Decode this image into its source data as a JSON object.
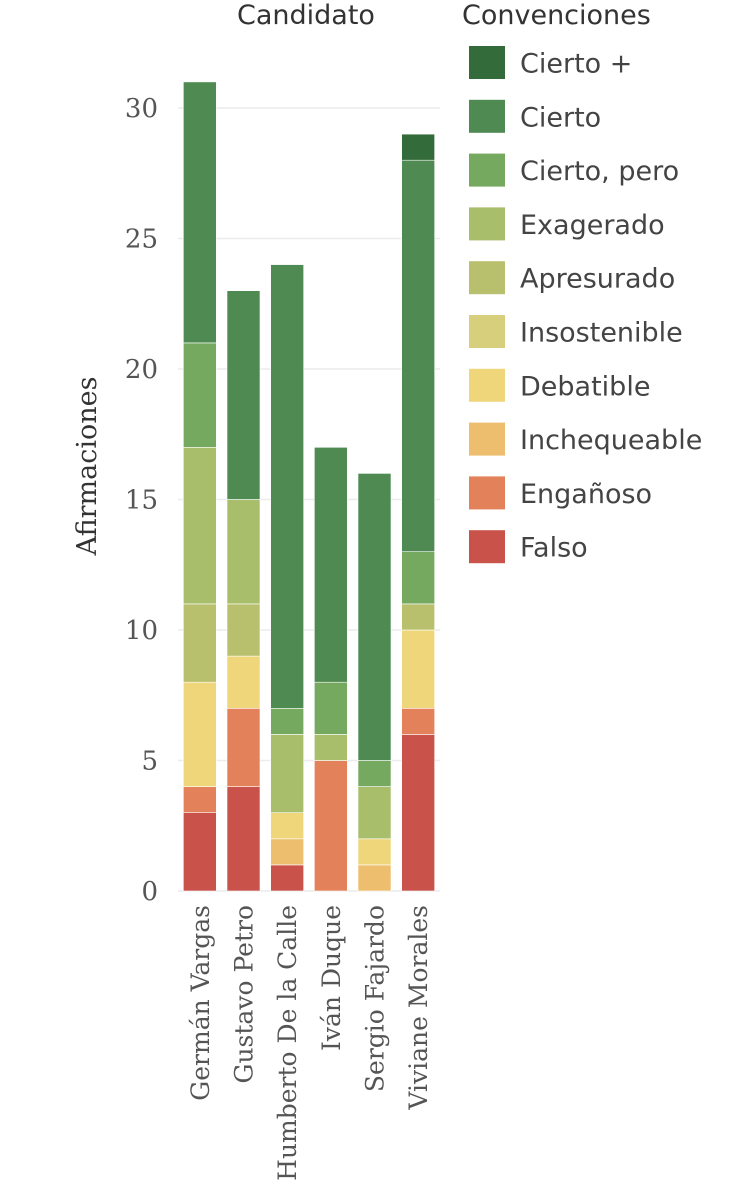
{
  "chart_data": {
    "type": "bar",
    "stacked": true,
    "title": "Candidato",
    "xlabel": "",
    "ylabel": "Afirmaciones",
    "ylim": [
      0,
      32
    ],
    "yticks": [
      0,
      5,
      10,
      15,
      20,
      25,
      30
    ],
    "grid": true,
    "legend_title": "Convenciones",
    "legend_position": "right",
    "categories": [
      "Germán Vargas",
      "Gustavo Petro",
      "Humberto De la Calle",
      "Iván Duque",
      "Sergio Fajardo",
      "Viviane Morales"
    ],
    "series": [
      {
        "name": "Falso",
        "color": "#c9534a",
        "values": [
          3,
          4,
          1,
          0,
          0,
          6
        ]
      },
      {
        "name": "Engañoso",
        "color": "#e3815a",
        "values": [
          1,
          3,
          0,
          5,
          0,
          1
        ]
      },
      {
        "name": "Inchequeable",
        "color": "#eebe6f",
        "values": [
          0,
          0,
          1,
          0,
          1,
          0
        ]
      },
      {
        "name": "Debatible",
        "color": "#efd67a",
        "values": [
          4,
          2,
          1,
          0,
          1,
          3
        ]
      },
      {
        "name": "Insostenible",
        "color": "#d8cf7c",
        "values": [
          0,
          0,
          0,
          0,
          0,
          0
        ]
      },
      {
        "name": "Apresurado",
        "color": "#b9c06d",
        "values": [
          3,
          2,
          0,
          0,
          0,
          1
        ]
      },
      {
        "name": "Exagerado",
        "color": "#a8be6a",
        "values": [
          6,
          4,
          3,
          1,
          2,
          0
        ]
      },
      {
        "name": "Cierto, pero",
        "color": "#74a95f",
        "values": [
          4,
          0,
          1,
          2,
          1,
          2
        ]
      },
      {
        "name": "Cierto",
        "color": "#4e8a51",
        "values": [
          10,
          8,
          17,
          9,
          11,
          15
        ]
      },
      {
        "name": "Cierto +",
        "color": "#346b3b",
        "values": [
          0,
          0,
          0,
          0,
          0,
          1
        ]
      }
    ],
    "legend_order": [
      "Cierto +",
      "Cierto",
      "Cierto, pero",
      "Exagerado",
      "Apresurado",
      "Insostenible",
      "Debatible",
      "Inchequeable",
      "Engañoso",
      "Falso"
    ]
  }
}
